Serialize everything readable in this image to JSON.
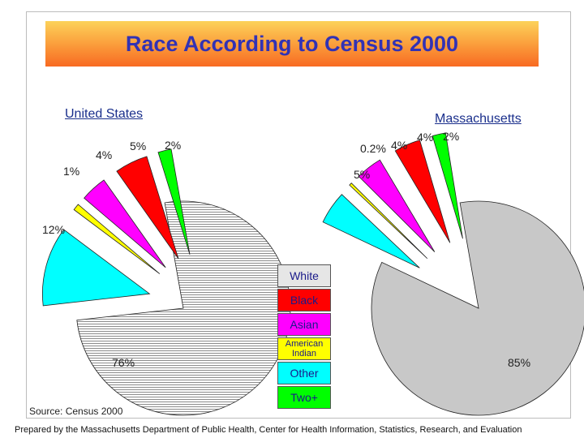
{
  "page": {
    "title": "Race According to Census 2000",
    "source": "Source: Census 2000",
    "footer": "Prepared by the Massachusetts Department of Public Health, Center for Health Information, Statistics, Research, and Evaluation"
  },
  "legend": [
    {
      "label": "White",
      "color": "#e6e6e6"
    },
    {
      "label": "Black",
      "color": "#ff0000"
    },
    {
      "label": "Asian",
      "color": "#ff00ff"
    },
    {
      "label": "American Indian",
      "color": "#ffff00"
    },
    {
      "label": "Other",
      "color": "#00ffff"
    },
    {
      "label": "Two+",
      "color": "#00ff00"
    }
  ],
  "chart_data": [
    {
      "type": "pie",
      "title": "United States",
      "slices": [
        {
          "category": "White",
          "value": 76,
          "label": "76%"
        },
        {
          "category": "Other",
          "value": 12,
          "label": "12%"
        },
        {
          "category": "American Indian",
          "value": 1,
          "label": "1%"
        },
        {
          "category": "Asian",
          "value": 4,
          "label": "4%"
        },
        {
          "category": "Black",
          "value": 5,
          "label": "5%"
        },
        {
          "category": "Two+",
          "value": 2,
          "label": "2%"
        }
      ],
      "pattern": "horizontal-lines"
    },
    {
      "type": "pie",
      "title": "Massachusetts",
      "slices": [
        {
          "category": "White",
          "value": 85,
          "label": "85%"
        },
        {
          "category": "Other",
          "value": 5,
          "label": "5%"
        },
        {
          "category": "American Indian",
          "value": 0.2,
          "label": "0.2%"
        },
        {
          "category": "Asian",
          "value": 4,
          "label": "4%"
        },
        {
          "category": "Black",
          "value": 4,
          "label": "4%"
        },
        {
          "category": "Two+",
          "value": 2,
          "label": "2%"
        }
      ],
      "pattern": "solid"
    }
  ]
}
